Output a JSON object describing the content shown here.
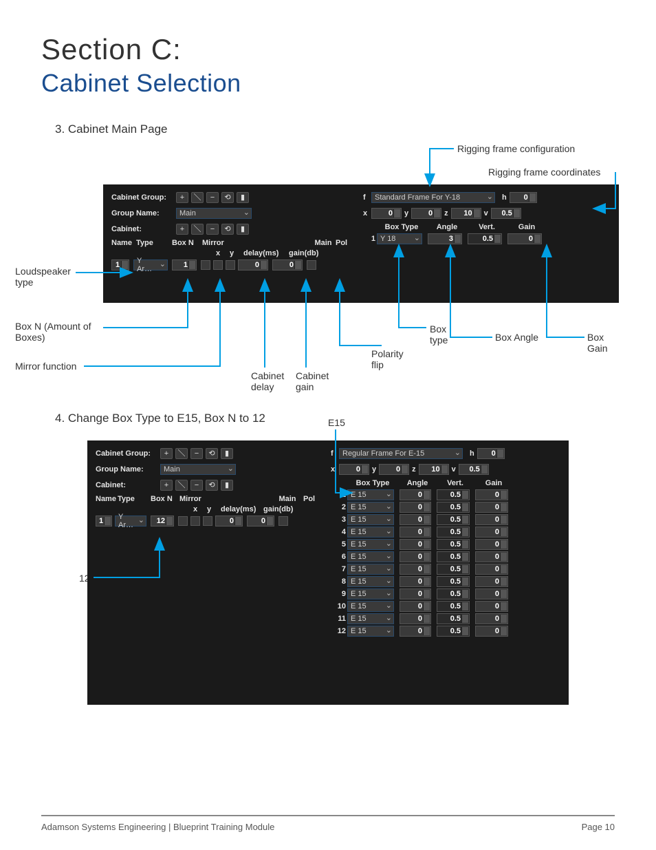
{
  "title": {
    "section": "Section C:",
    "name": "Cabinet Selection"
  },
  "step3": {
    "heading": "3. Cabinet Main Page",
    "labels": {
      "cabinet_group": "Cabinet Group:",
      "group_name": "Group Name:",
      "cabinet": "Cabinet:",
      "name": "Name",
      "type": "Type",
      "boxn": "Box N",
      "mirror": "Mirror",
      "main": "Main",
      "pol": "Pol",
      "x": "x",
      "y": "y",
      "delay": "delay(ms)",
      "gain": "gain(db)",
      "f": "f",
      "h": "h",
      "z": "z",
      "v": "v",
      "box_type": "Box Type",
      "angle": "Angle",
      "vert": "Vert.",
      "gain2": "Gain"
    },
    "group_name_value": "Main",
    "frame_name": "Standard Frame For Y-18",
    "h_val": "0",
    "x_val": "0",
    "y_val": "0",
    "z_val": "10",
    "v_val": "0.5",
    "row1": {
      "name": "1",
      "type_val": "Y Ar…",
      "boxn_val": "1",
      "delay_val": "0",
      "gain_val": "0"
    },
    "box1": {
      "idx": "1",
      "type": "Y 18",
      "angle": "3",
      "vert": "0.5",
      "gain": "0"
    },
    "callouts": {
      "rig_config": "Rigging frame configuration",
      "rig_coords": "Rigging frame coordinates",
      "loudspeaker": "Loudspeaker type",
      "boxn_label": "Box N (Amount of Boxes)",
      "mirror_fn": "Mirror function",
      "cab_delay": "Cabinet delay",
      "cab_gain": "Cabinet gain",
      "polarity": "Polarity flip",
      "box_type": "Box type",
      "box_angle": "Box Angle",
      "box_gain": "Box Gain"
    }
  },
  "step4": {
    "heading": "4. Change Box Type to E15, Box N to 12",
    "labels": {
      "cabinet_group": "Cabinet Group:",
      "group_name": "Group Name:",
      "cabinet": "Cabinet:",
      "name": "Name",
      "type": "Type",
      "boxn": "Box N",
      "mirror": "Mirror",
      "main": "Main",
      "pol": "Pol",
      "x": "x",
      "y": "y",
      "delay": "delay(ms)",
      "gain": "gain(db)",
      "f": "f",
      "h": "h",
      "z": "z",
      "v": "v",
      "box_type": "Box Type",
      "angle": "Angle",
      "vert": "Vert.",
      "gain2": "Gain"
    },
    "group_name_value": "Main",
    "frame_name": "Regular Frame For E-15",
    "h_val": "0",
    "x_val": "0",
    "y_val": "0",
    "z_val": "10",
    "v_val": "0.5",
    "row1": {
      "name": "1",
      "type_val": "Y Ar…",
      "boxn_val": "12",
      "delay_val": "0",
      "gain_val": "0"
    },
    "boxes": [
      {
        "idx": "1",
        "type": "E 15",
        "angle": "0",
        "vert": "0.5",
        "gain": "0"
      },
      {
        "idx": "2",
        "type": "E 15",
        "angle": "0",
        "vert": "0.5",
        "gain": "0"
      },
      {
        "idx": "3",
        "type": "E 15",
        "angle": "0",
        "vert": "0.5",
        "gain": "0"
      },
      {
        "idx": "4",
        "type": "E 15",
        "angle": "0",
        "vert": "0.5",
        "gain": "0"
      },
      {
        "idx": "5",
        "type": "E 15",
        "angle": "0",
        "vert": "0.5",
        "gain": "0"
      },
      {
        "idx": "6",
        "type": "E 15",
        "angle": "0",
        "vert": "0.5",
        "gain": "0"
      },
      {
        "idx": "7",
        "type": "E 15",
        "angle": "0",
        "vert": "0.5",
        "gain": "0"
      },
      {
        "idx": "8",
        "type": "E 15",
        "angle": "0",
        "vert": "0.5",
        "gain": "0"
      },
      {
        "idx": "9",
        "type": "E 15",
        "angle": "0",
        "vert": "0.5",
        "gain": "0"
      },
      {
        "idx": "10",
        "type": "E 15",
        "angle": "0",
        "vert": "0.5",
        "gain": "0"
      },
      {
        "idx": "11",
        "type": "E 15",
        "angle": "0",
        "vert": "0.5",
        "gain": "0"
      },
      {
        "idx": "12",
        "type": "E 15",
        "angle": "0",
        "vert": "0.5",
        "gain": "0"
      }
    ],
    "callouts": {
      "e15": "E15",
      "twelve": "12"
    }
  },
  "footer": {
    "left": "Adamson Systems Engineering  |  Blueprint Training Module",
    "right": "Page 10"
  },
  "colors": {
    "accent": "#009fe3",
    "panel_bg": "#1a1a1a",
    "h2": "#1a4d8f"
  }
}
